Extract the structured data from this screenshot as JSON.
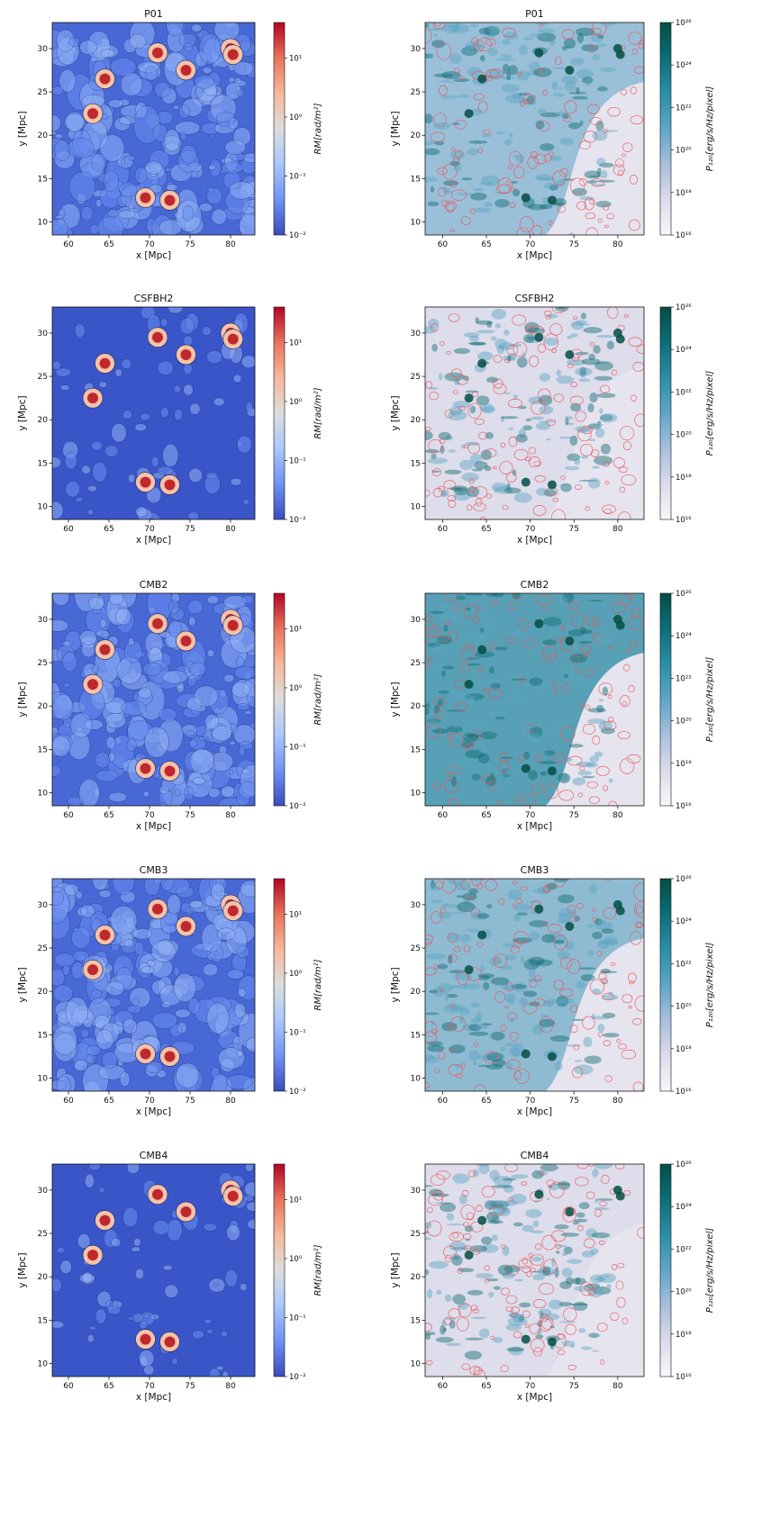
{
  "figure": {
    "colorbar_rm": {
      "label": "RM[rad/m²]",
      "ticks": [
        {
          "label": "10¹",
          "value": 10
        },
        {
          "label": "10⁰",
          "value": 1
        },
        {
          "label": "10⁻¹",
          "value": 0.1
        },
        {
          "label": "10⁻²",
          "value": 0.01
        }
      ],
      "range": [
        0.01,
        40
      ],
      "colors": [
        "#3b4cc0",
        "#6f92f3",
        "#aac7fd",
        "#dcdddd",
        "#f7b89c",
        "#e7745b",
        "#b40426"
      ]
    },
    "colorbar_power": {
      "label": "P₁₂₀[erg/s/Hz/pixel]",
      "ticks": [
        {
          "label": "10²⁶",
          "value": 1e+26
        },
        {
          "label": "10²⁴",
          "value": 1e+24
        },
        {
          "label": "10²²",
          "value": 1e+22
        },
        {
          "label": "10²⁰",
          "value": 1e+20
        },
        {
          "label": "10¹⁸",
          "value": 1e+18
        },
        {
          "label": "10¹⁶",
          "value": 1e+16
        }
      ],
      "range": [
        1e+16,
        1e+26
      ],
      "colors": [
        "#fbf6fa",
        "#dcdbeb",
        "#a9bfdc",
        "#5ea6c9",
        "#2a8fa8",
        "#0b6e78",
        "#034e45"
      ],
      "contour_color": "#e8585a"
    }
  },
  "chart_data": [
    {
      "type": "heatmap",
      "title": "P01",
      "xlabel": "x [Mpc]",
      "ylabel": "y [Mpc]",
      "xlim": [
        58,
        83
      ],
      "ylim": [
        8.5,
        33
      ],
      "x_ticks": [
        60,
        65,
        70,
        75,
        80
      ],
      "y_ticks": [
        10,
        15,
        20,
        25,
        30
      ],
      "quantity": "RM",
      "colorbar": "colorbar_rm",
      "log_scale": true
    },
    {
      "type": "heatmap",
      "title": "P01",
      "xlabel": "x [Mpc]",
      "ylabel": "y [Mpc]",
      "xlim": [
        58,
        83
      ],
      "ylim": [
        8.5,
        33
      ],
      "x_ticks": [
        60,
        65,
        70,
        75,
        80
      ],
      "y_ticks": [
        10,
        15,
        20,
        25,
        30
      ],
      "quantity": "P120",
      "colorbar": "colorbar_power",
      "log_scale": true
    },
    {
      "type": "heatmap",
      "title": "CSFBH2",
      "xlabel": "x [Mpc]",
      "ylabel": "y [Mpc]",
      "xlim": [
        58,
        83
      ],
      "ylim": [
        8.5,
        33
      ],
      "x_ticks": [
        60,
        65,
        70,
        75,
        80
      ],
      "y_ticks": [
        10,
        15,
        20,
        25,
        30
      ],
      "quantity": "RM",
      "colorbar": "colorbar_rm",
      "log_scale": true
    },
    {
      "type": "heatmap",
      "title": "CSFBH2",
      "xlabel": "x [Mpc]",
      "ylabel": "y [Mpc]",
      "xlim": [
        58,
        83
      ],
      "ylim": [
        8.5,
        33
      ],
      "x_ticks": [
        60,
        65,
        70,
        75,
        80
      ],
      "y_ticks": [
        10,
        15,
        20,
        25,
        30
      ],
      "quantity": "P120",
      "colorbar": "colorbar_power",
      "log_scale": true
    },
    {
      "type": "heatmap",
      "title": "CMB2",
      "xlabel": "x [Mpc]",
      "ylabel": "y [Mpc]",
      "xlim": [
        58,
        83
      ],
      "ylim": [
        8.5,
        33
      ],
      "x_ticks": [
        60,
        65,
        70,
        75,
        80
      ],
      "y_ticks": [
        10,
        15,
        20,
        25,
        30
      ],
      "quantity": "RM",
      "colorbar": "colorbar_rm",
      "log_scale": true
    },
    {
      "type": "heatmap",
      "title": "CMB2",
      "xlabel": "x [Mpc]",
      "ylabel": "y [Mpc]",
      "xlim": [
        58,
        83
      ],
      "ylim": [
        8.5,
        33
      ],
      "x_ticks": [
        60,
        65,
        70,
        75,
        80
      ],
      "y_ticks": [
        10,
        15,
        20,
        25,
        30
      ],
      "quantity": "P120",
      "colorbar": "colorbar_power",
      "log_scale": true
    },
    {
      "type": "heatmap",
      "title": "CMB3",
      "xlabel": "x [Mpc]",
      "ylabel": "y [Mpc]",
      "xlim": [
        58,
        83
      ],
      "ylim": [
        8.5,
        33
      ],
      "x_ticks": [
        60,
        65,
        70,
        75,
        80
      ],
      "y_ticks": [
        10,
        15,
        20,
        25,
        30
      ],
      "quantity": "RM",
      "colorbar": "colorbar_rm",
      "log_scale": true
    },
    {
      "type": "heatmap",
      "title": "CMB3",
      "xlabel": "x [Mpc]",
      "ylabel": "y [Mpc]",
      "xlim": [
        58,
        83
      ],
      "ylim": [
        8.5,
        33
      ],
      "x_ticks": [
        60,
        65,
        70,
        75,
        80
      ],
      "y_ticks": [
        10,
        15,
        20,
        25,
        30
      ],
      "quantity": "P120",
      "colorbar": "colorbar_power",
      "log_scale": true
    },
    {
      "type": "heatmap",
      "title": "CMB4",
      "xlabel": "x [Mpc]",
      "ylabel": "y [Mpc]",
      "xlim": [
        58,
        83
      ],
      "ylim": [
        8.5,
        33
      ],
      "x_ticks": [
        60,
        65,
        70,
        75,
        80
      ],
      "y_ticks": [
        10,
        15,
        20,
        25,
        30
      ],
      "quantity": "RM",
      "colorbar": "colorbar_rm",
      "log_scale": true
    },
    {
      "type": "heatmap",
      "title": "CMB4",
      "xlabel": "x [Mpc]",
      "ylabel": "y [Mpc]",
      "xlim": [
        58,
        83
      ],
      "ylim": [
        8.5,
        33
      ],
      "x_ticks": [
        60,
        65,
        70,
        75,
        80
      ],
      "y_ticks": [
        10,
        15,
        20,
        25,
        30
      ],
      "quantity": "P120",
      "colorbar": "colorbar_power",
      "log_scale": true
    }
  ]
}
